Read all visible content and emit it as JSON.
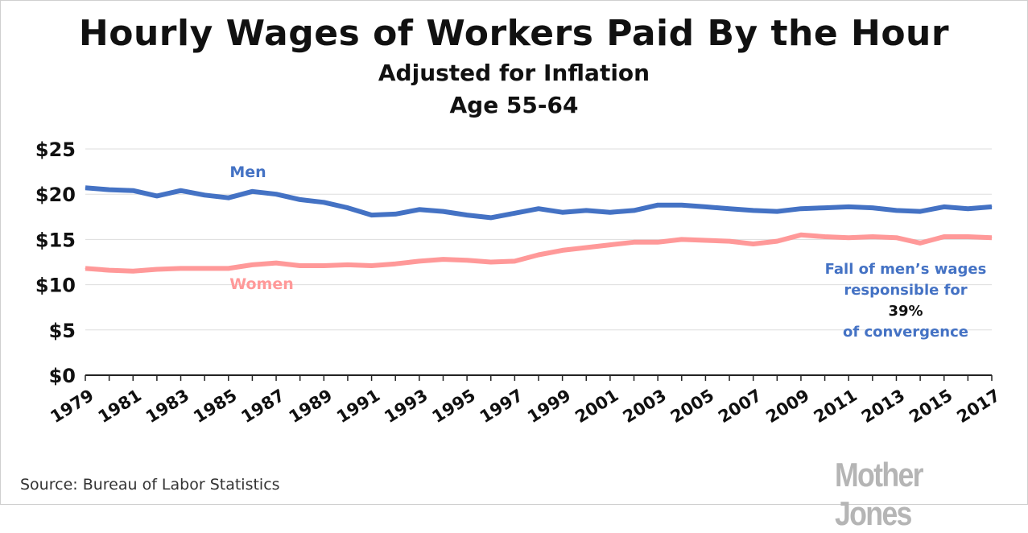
{
  "chart_data": {
    "type": "line",
    "title": "Hourly Wages of Workers Paid By the Hour",
    "subtitle": [
      "Adjusted for Inflation",
      "Age 55-64"
    ],
    "x": [
      1979,
      1980,
      1981,
      1982,
      1983,
      1984,
      1985,
      1986,
      1987,
      1988,
      1989,
      1990,
      1991,
      1992,
      1993,
      1994,
      1995,
      1996,
      1997,
      1998,
      1999,
      2000,
      2001,
      2002,
      2003,
      2004,
      2005,
      2006,
      2007,
      2008,
      2009,
      2010,
      2011,
      2012,
      2013,
      2014,
      2015,
      2016,
      2017
    ],
    "x_tick_labels": [
      "1979",
      "1981",
      "1983",
      "1985",
      "1987",
      "1989",
      "1991",
      "1993",
      "1995",
      "1997",
      "1999",
      "2001",
      "2003",
      "2005",
      "2007",
      "2009",
      "2011",
      "2013",
      "2015",
      "2017"
    ],
    "y_tick_labels": [
      "$0",
      "$5",
      "$10",
      "$15",
      "$20",
      "$25"
    ],
    "y_ticks": [
      0,
      5,
      10,
      15,
      20,
      25
    ],
    "ylim": [
      0,
      25
    ],
    "grid": true,
    "series": [
      {
        "name": "Men",
        "color": "#4472c4",
        "values": [
          20.7,
          20.5,
          20.4,
          19.8,
          20.4,
          19.9,
          19.6,
          20.3,
          20.0,
          19.4,
          19.1,
          18.5,
          17.7,
          17.8,
          18.3,
          18.1,
          17.7,
          17.4,
          17.9,
          18.4,
          18.0,
          18.2,
          18.0,
          18.2,
          18.8,
          18.8,
          18.6,
          18.4,
          18.2,
          18.1,
          18.4,
          18.5,
          18.6,
          18.5,
          18.2,
          18.1,
          18.6,
          18.4,
          18.6
        ]
      },
      {
        "name": "Women",
        "color": "#ff9999",
        "values": [
          11.8,
          11.6,
          11.5,
          11.7,
          11.8,
          11.8,
          11.8,
          12.2,
          12.4,
          12.1,
          12.1,
          12.2,
          12.1,
          12.3,
          12.6,
          12.8,
          12.7,
          12.5,
          12.6,
          13.3,
          13.8,
          14.1,
          14.4,
          14.7,
          14.7,
          15.0,
          14.9,
          14.8,
          14.5,
          14.8,
          15.5,
          15.3,
          15.2,
          15.3,
          15.2,
          14.6,
          15.3,
          15.3,
          15.2
        ]
      }
    ],
    "annotation": {
      "line1": "Fall of men’s wages",
      "line2": "responsible for",
      "pct": "39%",
      "line4": "of convergence"
    }
  },
  "source": "Source: Bureau of Labor Statistics",
  "logo": "Mother Jones"
}
